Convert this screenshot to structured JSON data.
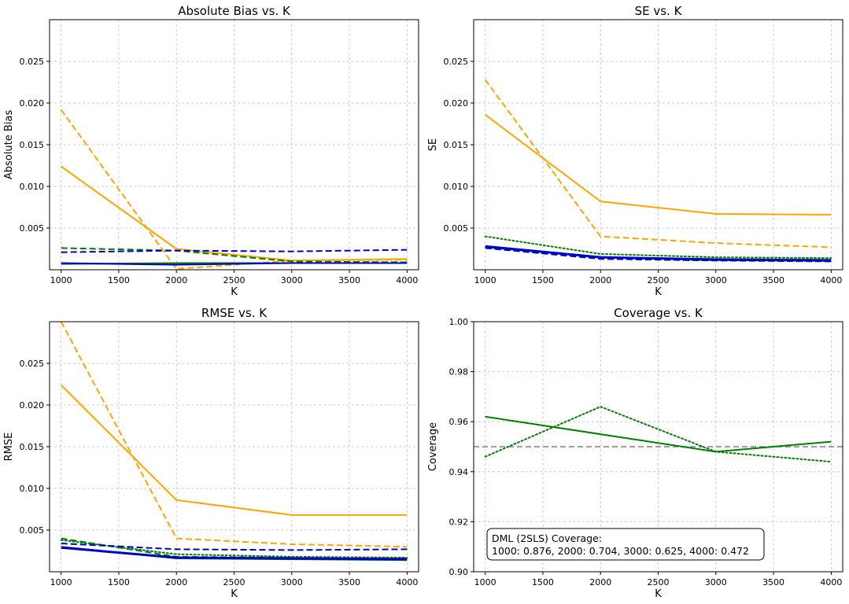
{
  "chart_data": [
    {
      "type": "line",
      "title": "Absolute Bias vs. K",
      "xlabel": "K",
      "ylabel": "Absolute Bias",
      "xlim": [
        900,
        4100
      ],
      "ylim": [
        0.0,
        0.03
      ],
      "xticks": [
        "1000",
        "1500",
        "2000",
        "2500",
        "3000",
        "3500",
        "4000"
      ],
      "yticks": [
        "0.005",
        "0.010",
        "0.015",
        "0.020",
        "0.025"
      ],
      "grid": true,
      "x": [
        1000,
        2000,
        3000,
        4000
      ],
      "series": [
        {
          "color": "#ffa500",
          "style": "solid",
          "width": 2,
          "values": [
            0.0124,
            0.0025,
            0.0011,
            0.0013
          ]
        },
        {
          "color": "#ffa500",
          "style": "dashed",
          "width": 2,
          "values": [
            0.0192,
            0.0001,
            0.0011,
            0.0012
          ]
        },
        {
          "color": "#008000",
          "style": "dashed",
          "width": 2,
          "values": [
            0.0026,
            0.0023,
            0.001,
            0.0009
          ]
        },
        {
          "color": "#008000",
          "style": "solid",
          "width": 2,
          "values": [
            0.0007,
            0.0008,
            0.0008,
            0.0008
          ]
        },
        {
          "color": "#0000cd",
          "style": "dashed",
          "width": 2,
          "values": [
            0.0021,
            0.0023,
            0.0022,
            0.0024
          ]
        },
        {
          "color": "#0000cd",
          "style": "solid",
          "width": 2,
          "values": [
            0.0008,
            0.0006,
            0.0008,
            0.0008
          ]
        }
      ]
    },
    {
      "type": "line",
      "title": "SE vs. K",
      "xlabel": "K",
      "ylabel": "SE",
      "xlim": [
        900,
        4100
      ],
      "ylim": [
        0.0,
        0.03
      ],
      "xticks": [
        "1000",
        "1500",
        "2000",
        "2500",
        "3000",
        "3500",
        "4000"
      ],
      "yticks": [
        "0.005",
        "0.010",
        "0.015",
        "0.020",
        "0.025"
      ],
      "grid": true,
      "x": [
        1000,
        2000,
        3000,
        4000
      ],
      "series": [
        {
          "color": "#ffa500",
          "style": "solid",
          "width": 2,
          "values": [
            0.0186,
            0.0082,
            0.0067,
            0.0066
          ]
        },
        {
          "color": "#ffa500",
          "style": "dashed",
          "width": 2,
          "values": [
            0.0228,
            0.004,
            0.0032,
            0.0027
          ]
        },
        {
          "color": "#008000",
          "style": "dotted",
          "width": 2,
          "values": [
            0.004,
            0.0019,
            0.0015,
            0.0014
          ]
        },
        {
          "color": "#008000",
          "style": "solid",
          "width": 2,
          "values": [
            0.0027,
            0.0015,
            0.0013,
            0.0012
          ]
        },
        {
          "color": "#0000cd",
          "style": "dashed",
          "width": 2,
          "values": [
            0.0026,
            0.0013,
            0.0011,
            0.001
          ]
        },
        {
          "color": "#0000cd",
          "style": "solid",
          "width": 3,
          "values": [
            0.0028,
            0.0015,
            0.0012,
            0.0011
          ]
        }
      ]
    },
    {
      "type": "line",
      "title": "RMSE vs. K",
      "xlabel": "K",
      "ylabel": "RMSE",
      "xlim": [
        900,
        4100
      ],
      "ylim": [
        0.0,
        0.03
      ],
      "xticks": [
        "1000",
        "1500",
        "2000",
        "2500",
        "3000",
        "3500",
        "4000"
      ],
      "yticks": [
        "0.005",
        "0.010",
        "0.015",
        "0.020",
        "0.025"
      ],
      "grid": true,
      "x": [
        1000,
        2000,
        3000,
        4000
      ],
      "series": [
        {
          "color": "#ffa500",
          "style": "solid",
          "width": 2,
          "values": [
            0.0224,
            0.0086,
            0.0068,
            0.0068
          ]
        },
        {
          "color": "#ffa500",
          "style": "dashed",
          "width": 2,
          "values": [
            0.03,
            0.004,
            0.0033,
            0.003
          ]
        },
        {
          "color": "#008000",
          "style": "dashed",
          "width": 2,
          "values": [
            0.004,
            0.0018,
            0.0017,
            0.0016
          ]
        },
        {
          "color": "#008000",
          "style": "dotted",
          "width": 2,
          "values": [
            0.0038,
            0.0021,
            0.0018,
            0.0017
          ]
        },
        {
          "color": "#008000",
          "style": "solid",
          "width": 2,
          "values": [
            0.003,
            0.0016,
            0.0015,
            0.0014
          ]
        },
        {
          "color": "#0000cd",
          "style": "dashed",
          "width": 2,
          "values": [
            0.0034,
            0.0027,
            0.0026,
            0.0027
          ]
        },
        {
          "color": "#0000cd",
          "style": "solid",
          "width": 3,
          "values": [
            0.0029,
            0.0017,
            0.0016,
            0.0015
          ]
        }
      ]
    },
    {
      "type": "line",
      "title": "Coverage vs. K",
      "xlabel": "K",
      "ylabel": "Coverage",
      "xlim": [
        900,
        4100
      ],
      "ylim": [
        0.9,
        1.0
      ],
      "xticks": [
        "1000",
        "1500",
        "2000",
        "2500",
        "3000",
        "3500",
        "4000"
      ],
      "yticks": [
        "0.90",
        "0.92",
        "0.94",
        "0.96",
        "0.98",
        "1.00"
      ],
      "grid": true,
      "reference_line": {
        "y": 0.95,
        "color": "#808080",
        "style": "dashed"
      },
      "x": [
        1000,
        2000,
        3000,
        4000
      ],
      "series": [
        {
          "color": "#008000",
          "style": "solid",
          "width": 2,
          "values": [
            0.962,
            0.955,
            0.948,
            0.952
          ]
        },
        {
          "color": "#008000",
          "style": "dotted",
          "width": 2,
          "values": [
            0.946,
            0.966,
            0.948,
            0.944
          ]
        }
      ],
      "annotation": {
        "lines": [
          "DML (2SLS) Coverage:",
          "1000: 0.876, 2000: 0.704, 3000: 0.625, 4000: 0.472"
        ],
        "placement": "bottom-left"
      }
    }
  ]
}
